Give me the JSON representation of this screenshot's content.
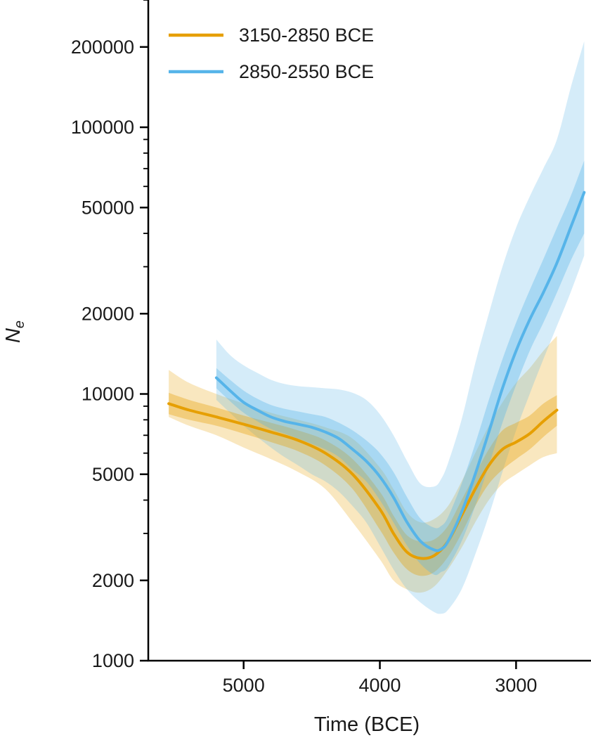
{
  "chart_data": {
    "type": "line",
    "title": "",
    "xlabel": "Time (BCE)",
    "ylabel_main": "N",
    "ylabel_sub": "e",
    "x_reversed": true,
    "xlim": [
      5700,
      2450
    ],
    "ylim": [
      1000,
      300000
    ],
    "yscale": "log",
    "xticks": [
      5000,
      4000,
      3000
    ],
    "yticks": [
      1000,
      2000,
      5000,
      10000,
      20000,
      50000,
      100000,
      200000
    ],
    "legend_placement": "top-left",
    "grid": false,
    "series": [
      {
        "name": "3150-2850 BCE",
        "color": "#E69F00",
        "x": [
          5550,
          5400,
          5200,
          5000,
          4800,
          4600,
          4400,
          4200,
          4000,
          3900,
          3800,
          3700,
          3600,
          3500,
          3400,
          3300,
          3200,
          3100,
          3000,
          2900,
          2800,
          2700
        ],
        "y": [
          9200,
          8700,
          8200,
          7700,
          7200,
          6700,
          6000,
          5000,
          3700,
          3000,
          2550,
          2420,
          2480,
          2800,
          3500,
          4400,
          5400,
          6200,
          6600,
          7100,
          7900,
          8700
        ],
        "ci50_lower": [
          8400,
          8000,
          7600,
          7100,
          6600,
          6100,
          5400,
          4400,
          3100,
          2550,
          2200,
          2080,
          2150,
          2450,
          3000,
          3800,
          4600,
          5200,
          5700,
          6200,
          6900,
          7600
        ],
        "ci50_upper": [
          10100,
          9500,
          8900,
          8300,
          7800,
          7300,
          6700,
          5700,
          4300,
          3500,
          2950,
          2800,
          2850,
          3200,
          4000,
          5000,
          6200,
          7300,
          7800,
          8300,
          9200,
          9900
        ],
        "ci95_lower": [
          8200,
          7600,
          7000,
          6300,
          5700,
          5100,
          4400,
          3300,
          2400,
          2000,
          1850,
          1800,
          1900,
          2200,
          2650,
          3300,
          4000,
          4600,
          5000,
          5400,
          5800,
          6000
        ],
        "ci95_upper": [
          12300,
          11000,
          10000,
          9200,
          8500,
          8000,
          7500,
          6800,
          5300,
          4400,
          3600,
          3300,
          3400,
          3800,
          4700,
          6000,
          7600,
          9300,
          11000,
          12500,
          14500,
          16500
        ]
      },
      {
        "name": "2850-2550 BCE",
        "color": "#56B4E9",
        "x": [
          5200,
          5100,
          5000,
          4900,
          4800,
          4700,
          4600,
          4500,
          4400,
          4300,
          4200,
          4100,
          4000,
          3900,
          3800,
          3700,
          3600,
          3550,
          3500,
          3400,
          3300,
          3200,
          3100,
          3000,
          2900,
          2800,
          2700,
          2600,
          2500
        ],
        "y": [
          11500,
          10300,
          9300,
          8700,
          8200,
          7900,
          7700,
          7500,
          7200,
          6800,
          6200,
          5600,
          4900,
          4100,
          3300,
          2800,
          2600,
          2620,
          2800,
          3600,
          5000,
          7200,
          10500,
          14500,
          19000,
          24000,
          31000,
          42000,
          57000
        ],
        "ci50_lower": [
          10500,
          9400,
          8500,
          7900,
          7400,
          7100,
          6800,
          6500,
          6200,
          5800,
          5200,
          4700,
          4000,
          3300,
          2700,
          2300,
          2100,
          2150,
          2250,
          2800,
          3800,
          5400,
          7800,
          10800,
          14500,
          18500,
          24000,
          31500,
          40000
        ],
        "ci50_upper": [
          12500,
          11300,
          10300,
          9600,
          9100,
          8800,
          8600,
          8400,
          8200,
          7800,
          7300,
          6700,
          6000,
          5100,
          4100,
          3400,
          3150,
          3200,
          3450,
          4600,
          6500,
          9500,
          13500,
          18500,
          24500,
          32000,
          42000,
          55000,
          75000
        ],
        "ci95_lower": [
          9500,
          8500,
          7600,
          6900,
          6300,
          5800,
          5400,
          5000,
          4700,
          4300,
          3800,
          3300,
          2700,
          2200,
          1850,
          1650,
          1520,
          1500,
          1550,
          1850,
          2500,
          3500,
          5100,
          7300,
          10000,
          13500,
          18000,
          24000,
          33000
        ],
        "ci95_upper": [
          16000,
          14000,
          12800,
          12000,
          11300,
          10900,
          10700,
          10600,
          10500,
          10400,
          10100,
          9500,
          8400,
          7000,
          5600,
          4600,
          4500,
          4800,
          5500,
          8000,
          13000,
          20000,
          30000,
          42000,
          55000,
          70000,
          90000,
          140000,
          210000
        ]
      }
    ]
  }
}
